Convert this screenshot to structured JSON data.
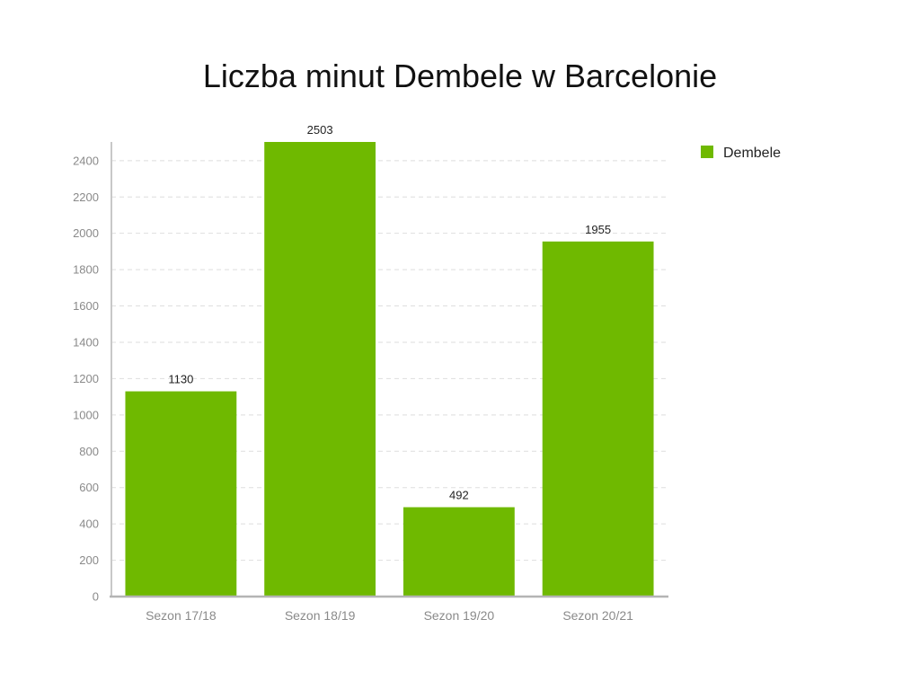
{
  "chart_data": {
    "type": "bar",
    "title": "Liczba minut Dembele w Barcelonie",
    "categories": [
      "Sezon 17/18",
      "Sezon 18/19",
      "Sezon 19/20",
      "Sezon 20/21"
    ],
    "series": [
      {
        "name": "Dembele",
        "values": [
          1130,
          2503,
          492,
          1955
        ],
        "color": "#6fb900"
      }
    ],
    "ylim": [
      0,
      2503
    ],
    "yticks": [
      0,
      200,
      400,
      600,
      800,
      1000,
      1200,
      1400,
      1600,
      1800,
      2000,
      2200,
      2400
    ],
    "grid": true,
    "legend": "top-right",
    "data_labels": true
  }
}
